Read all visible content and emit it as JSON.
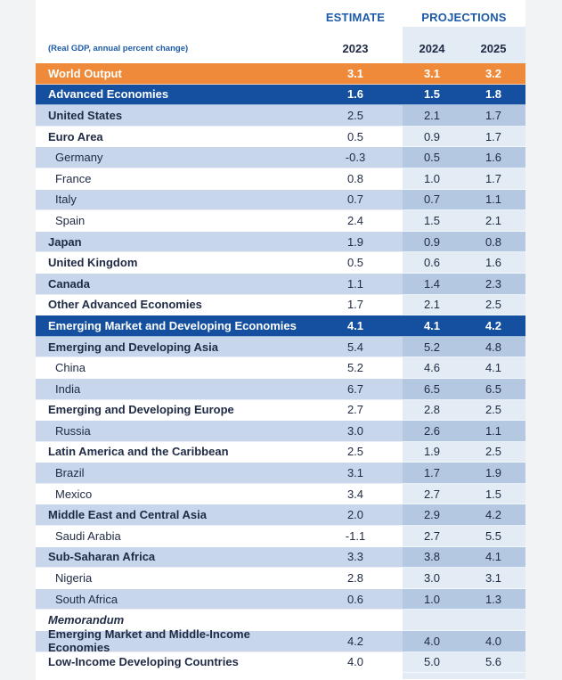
{
  "header": {
    "estimate_label": "ESTIMATE",
    "projections_label": "PROJECTIONS",
    "units_label": "(Real GDP, annual percent change)",
    "years": [
      "2023",
      "2024",
      "2025"
    ]
  },
  "rows": [
    {
      "label": "World Output",
      "v2023": "3.1",
      "v2024": "3.1",
      "v2025": "3.2",
      "style": "world"
    },
    {
      "label": "Advanced Economies",
      "v2023": "1.6",
      "v2024": "1.5",
      "v2025": "1.8",
      "style": "group"
    },
    {
      "label": "United States",
      "v2023": "2.5",
      "v2024": "2.1",
      "v2025": "1.7",
      "style": "shade"
    },
    {
      "label": "Euro Area",
      "v2023": "0.5",
      "v2024": "0.9",
      "v2025": "1.7",
      "style": "plain"
    },
    {
      "label": "Germany",
      "v2023": "-0.3",
      "v2024": "0.5",
      "v2025": "1.6",
      "style": "shade sub"
    },
    {
      "label": "France",
      "v2023": "0.8",
      "v2024": "1.0",
      "v2025": "1.7",
      "style": "plain sub"
    },
    {
      "label": "Italy",
      "v2023": "0.7",
      "v2024": "0.7",
      "v2025": "1.1",
      "style": "shade sub"
    },
    {
      "label": "Spain",
      "v2023": "2.4",
      "v2024": "1.5",
      "v2025": "2.1",
      "style": "plain sub"
    },
    {
      "label": "Japan",
      "v2023": "1.9",
      "v2024": "0.9",
      "v2025": "0.8",
      "style": "shade"
    },
    {
      "label": "United Kingdom",
      "v2023": "0.5",
      "v2024": "0.6",
      "v2025": "1.6",
      "style": "plain"
    },
    {
      "label": "Canada",
      "v2023": "1.1",
      "v2024": "1.4",
      "v2025": "2.3",
      "style": "shade"
    },
    {
      "label": "Other Advanced Economies",
      "v2023": "1.7",
      "v2024": "2.1",
      "v2025": "2.5",
      "style": "plain"
    },
    {
      "label": "Emerging Market and Developing Economies",
      "v2023": "4.1",
      "v2024": "4.1",
      "v2025": "4.2",
      "style": "group"
    },
    {
      "label": "Emerging and Developing Asia",
      "v2023": "5.4",
      "v2024": "5.2",
      "v2025": "4.8",
      "style": "shade"
    },
    {
      "label": "China",
      "v2023": "5.2",
      "v2024": "4.6",
      "v2025": "4.1",
      "style": "plain sub"
    },
    {
      "label": "India",
      "v2023": "6.7",
      "v2024": "6.5",
      "v2025": "6.5",
      "style": "shade sub"
    },
    {
      "label": "Emerging and Developing Europe",
      "v2023": "2.7",
      "v2024": "2.8",
      "v2025": "2.5",
      "style": "plain"
    },
    {
      "label": "Russia",
      "v2023": "3.0",
      "v2024": "2.6",
      "v2025": "1.1",
      "style": "shade sub"
    },
    {
      "label": "Latin America and the Caribbean",
      "v2023": "2.5",
      "v2024": "1.9",
      "v2025": "2.5",
      "style": "plain"
    },
    {
      "label": "Brazil",
      "v2023": "3.1",
      "v2024": "1.7",
      "v2025": "1.9",
      "style": "shade sub"
    },
    {
      "label": "Mexico",
      "v2023": "3.4",
      "v2024": "2.7",
      "v2025": "1.5",
      "style": "plain sub"
    },
    {
      "label": "Middle East and Central Asia",
      "v2023": "2.0",
      "v2024": "2.9",
      "v2025": "4.2",
      "style": "shade"
    },
    {
      "label": "Saudi Arabia",
      "v2023": "-1.1",
      "v2024": "2.7",
      "v2025": "5.5",
      "style": "plain sub"
    },
    {
      "label": "Sub-Saharan Africa",
      "v2023": "3.3",
      "v2024": "3.8",
      "v2025": "4.1",
      "style": "shade"
    },
    {
      "label": "Nigeria",
      "v2023": "2.8",
      "v2024": "3.0",
      "v2025": "3.1",
      "style": "plain sub"
    },
    {
      "label": "South Africa",
      "v2023": "0.6",
      "v2024": "1.0",
      "v2025": "1.3",
      "style": "shade sub"
    },
    {
      "label": "Memorandum",
      "v2023": "",
      "v2024": "",
      "v2025": "",
      "style": "plain memo"
    },
    {
      "label": "Emerging Market and Middle-Income Economies",
      "v2023": "4.2",
      "v2024": "4.0",
      "v2025": "4.0",
      "style": "shade"
    },
    {
      "label": "Low-Income Developing Countries",
      "v2023": "4.0",
      "v2024": "5.0",
      "v2025": "5.6",
      "style": "plain"
    }
  ]
}
